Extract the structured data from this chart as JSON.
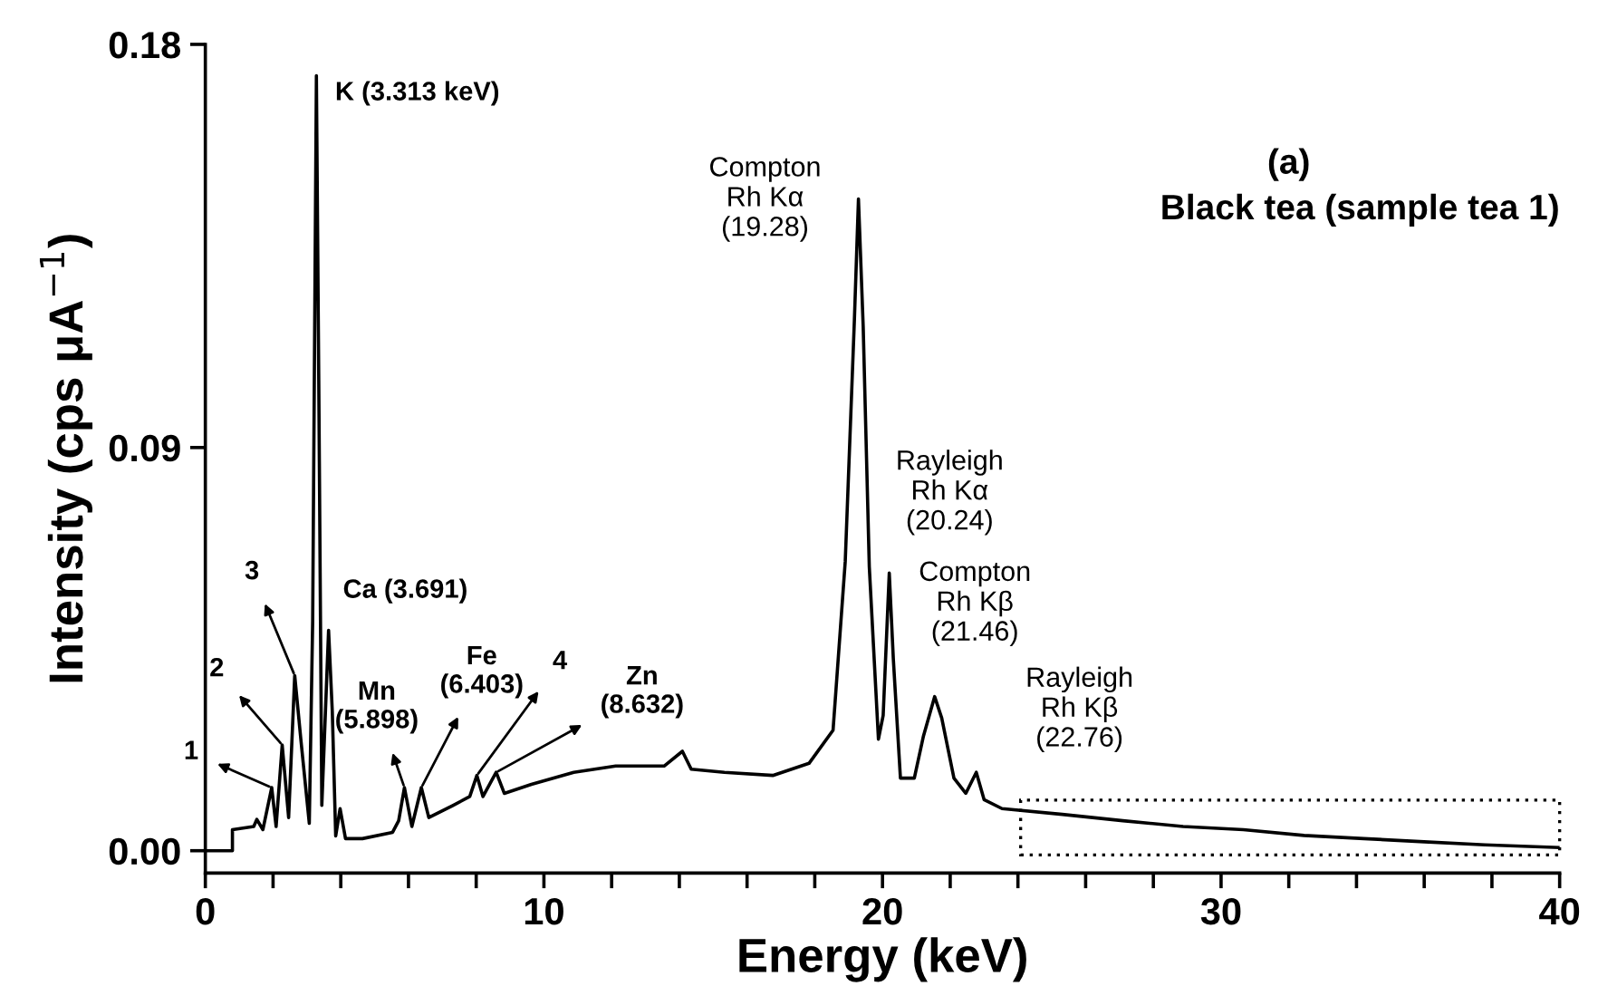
{
  "chart_data": {
    "type": "line",
    "title": "(a)",
    "subtitle": "Black tea (sample tea 1)",
    "xlabel": "Energy (keV)",
    "ylabel": "Intensity (cps μA$^{−1}$)",
    "xlim": [
      0,
      40
    ],
    "ylim": [
      -0.005,
      0.18
    ],
    "xticks": [
      0,
      {
        "value": 2,
        "label": null
      },
      {
        "value": 4,
        "label": null
      },
      {
        "value": 6,
        "label": null
      },
      {
        "value": 8,
        "label": null
      },
      10,
      {
        "value": 12,
        "label": null
      },
      {
        "value": 14,
        "label": null
      },
      {
        "value": 16,
        "label": null
      },
      {
        "value": 18,
        "label": null
      },
      20,
      {
        "value": 22,
        "label": null
      },
      {
        "value": 24,
        "label": null
      },
      {
        "value": 26,
        "label": null
      },
      {
        "value": 28,
        "label": null
      },
      30,
      {
        "value": 32,
        "label": null
      },
      {
        "value": 34,
        "label": null
      },
      {
        "value": 36,
        "label": null
      },
      {
        "value": 38,
        "label": null
      },
      40
    ],
    "yticks": [
      {
        "value": 0,
        "label": "0.00"
      },
      {
        "value": 0.09,
        "label": "0.09"
      },
      {
        "value": 0.18,
        "label": "0.18"
      }
    ],
    "grid": false,
    "marker": "none",
    "line_style": "solid",
    "series": [
      {
        "color": "#000000",
        "x": [
          0,
          0.8,
          0.8,
          1.43,
          1.52,
          1.7,
          1.96,
          2.09,
          2.27,
          2.46,
          2.64,
          2.82,
          3.07,
          3.17,
          3.28,
          3.35,
          3.44,
          3.64,
          3.75,
          3.85,
          3.98,
          4.14,
          4.64,
          5.53,
          5.71,
          5.88,
          6.1,
          6.38,
          6.6,
          7.31,
          7.81,
          8.02,
          8.2,
          8.59,
          8.83,
          9.63,
          10.88,
          12.12,
          13.55,
          14.09,
          14.35,
          15.33,
          16.76,
          17.83,
          18.54,
          18.9,
          19.17,
          19.29,
          19.43,
          19.61,
          19.88,
          20.02,
          20.2,
          20.32,
          20.53,
          20.94,
          21.21,
          21.54,
          21.75,
          22.11,
          22.46,
          22.77,
          23.0,
          23.53,
          25.31,
          27.1,
          28.88,
          30.66,
          32.45,
          34.22,
          36.0,
          37.79,
          40
        ],
        "values": [
          0,
          0,
          0.0047,
          0.0054,
          0.007,
          0.0047,
          0.0141,
          0.0054,
          0.0236,
          0.0074,
          0.0391,
          0.0249,
          0.0061,
          0.0512,
          0.173,
          0.105,
          0.0101,
          0.0492,
          0.031,
          0.0033,
          0.0094,
          0.0027,
          0.0027,
          0.0041,
          0.0067,
          0.0141,
          0.0054,
          0.0141,
          0.0074,
          0.0101,
          0.0121,
          0.0168,
          0.0121,
          0.0175,
          0.0128,
          0.0148,
          0.0175,
          0.0189,
          0.0189,
          0.0222,
          0.0182,
          0.0175,
          0.0168,
          0.0195,
          0.0269,
          0.0646,
          0.1185,
          0.1455,
          0.117,
          0.0634,
          0.0249,
          0.0302,
          0.062,
          0.0428,
          0.0162,
          0.0162,
          0.0256,
          0.0344,
          0.0296,
          0.0162,
          0.0128,
          0.0175,
          0.0114,
          0.0094,
          0.0081,
          0.0067,
          0.0054,
          0.0047,
          0.0034,
          0.0027,
          0.002,
          0.0013,
          0.0007
        ]
      }
    ],
    "annotations": [
      {
        "text": "K (3.313 keV)",
        "x": 3.313,
        "y": 0.173
      },
      {
        "text": "Ca (3.691)",
        "x": 3.691,
        "y": 0.049
      },
      {
        "text": "1",
        "x": 1.96,
        "y": 0.0141
      },
      {
        "text": "2",
        "x": 2.27,
        "y": 0.0236
      },
      {
        "text": "3",
        "x": 2.64,
        "y": 0.0391
      },
      {
        "text": "Mn\n(5.898)",
        "x": 5.88,
        "y": 0.0141
      },
      {
        "text": "Fe\n(6.403)",
        "x": 6.38,
        "y": 0.0141
      },
      {
        "text": "4",
        "x": 8.02,
        "y": 0.0168
      },
      {
        "text": "Zn\n(8.632)",
        "x": 8.59,
        "y": 0.0175
      },
      {
        "text": "Compton\nRh Kα\n(19.28)",
        "x": 19.28,
        "y": 0.1455
      },
      {
        "text": "Rayleigh\nRh Kα\n(20.24)",
        "x": 20.2,
        "y": 0.062
      },
      {
        "text": "Compton\nRh Kβ\n(21.46)",
        "x": 21.54,
        "y": 0.0344
      },
      {
        "text": "Rayleigh\nRh Kβ\n(22.76)",
        "x": 22.77,
        "y": 0.0175
      }
    ]
  }
}
